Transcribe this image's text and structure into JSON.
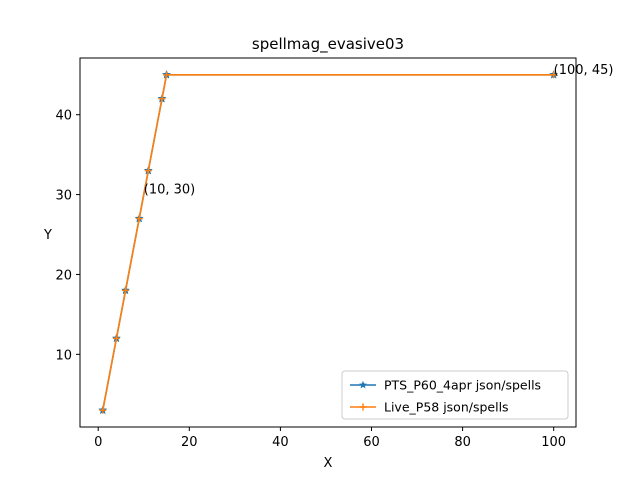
{
  "chart_data": {
    "type": "line",
    "title": "spellmag_evasive03",
    "xlabel": "X",
    "ylabel": "Y",
    "xlim": [
      -4.0,
      104.9
    ],
    "ylim": [
      0.9,
      47.1
    ],
    "xticks": [
      0,
      20,
      40,
      60,
      80,
      100
    ],
    "yticks": [
      10,
      20,
      30,
      40
    ],
    "grid": false,
    "legend_position": "lower right",
    "series": [
      {
        "name": "PTS_P60_4apr json/spells",
        "color": "#1f77b4",
        "marker": "star",
        "x": [
          1,
          4,
          6,
          9,
          11,
          14,
          15,
          100
        ],
        "y": [
          3,
          12,
          18,
          27,
          33,
          42,
          45,
          45
        ]
      },
      {
        "name": "Live_P58 json/spells",
        "color": "#ff7f0e",
        "marker": "plus",
        "x": [
          1,
          4,
          6,
          9,
          11,
          14,
          15,
          100
        ],
        "y": [
          3,
          12,
          18,
          27,
          33,
          42,
          45,
          45
        ]
      }
    ],
    "annotations": [
      {
        "text": "(10, 30)",
        "x": 10,
        "y": 30
      },
      {
        "text": "(100, 45)",
        "x": 100,
        "y": 45
      }
    ]
  }
}
